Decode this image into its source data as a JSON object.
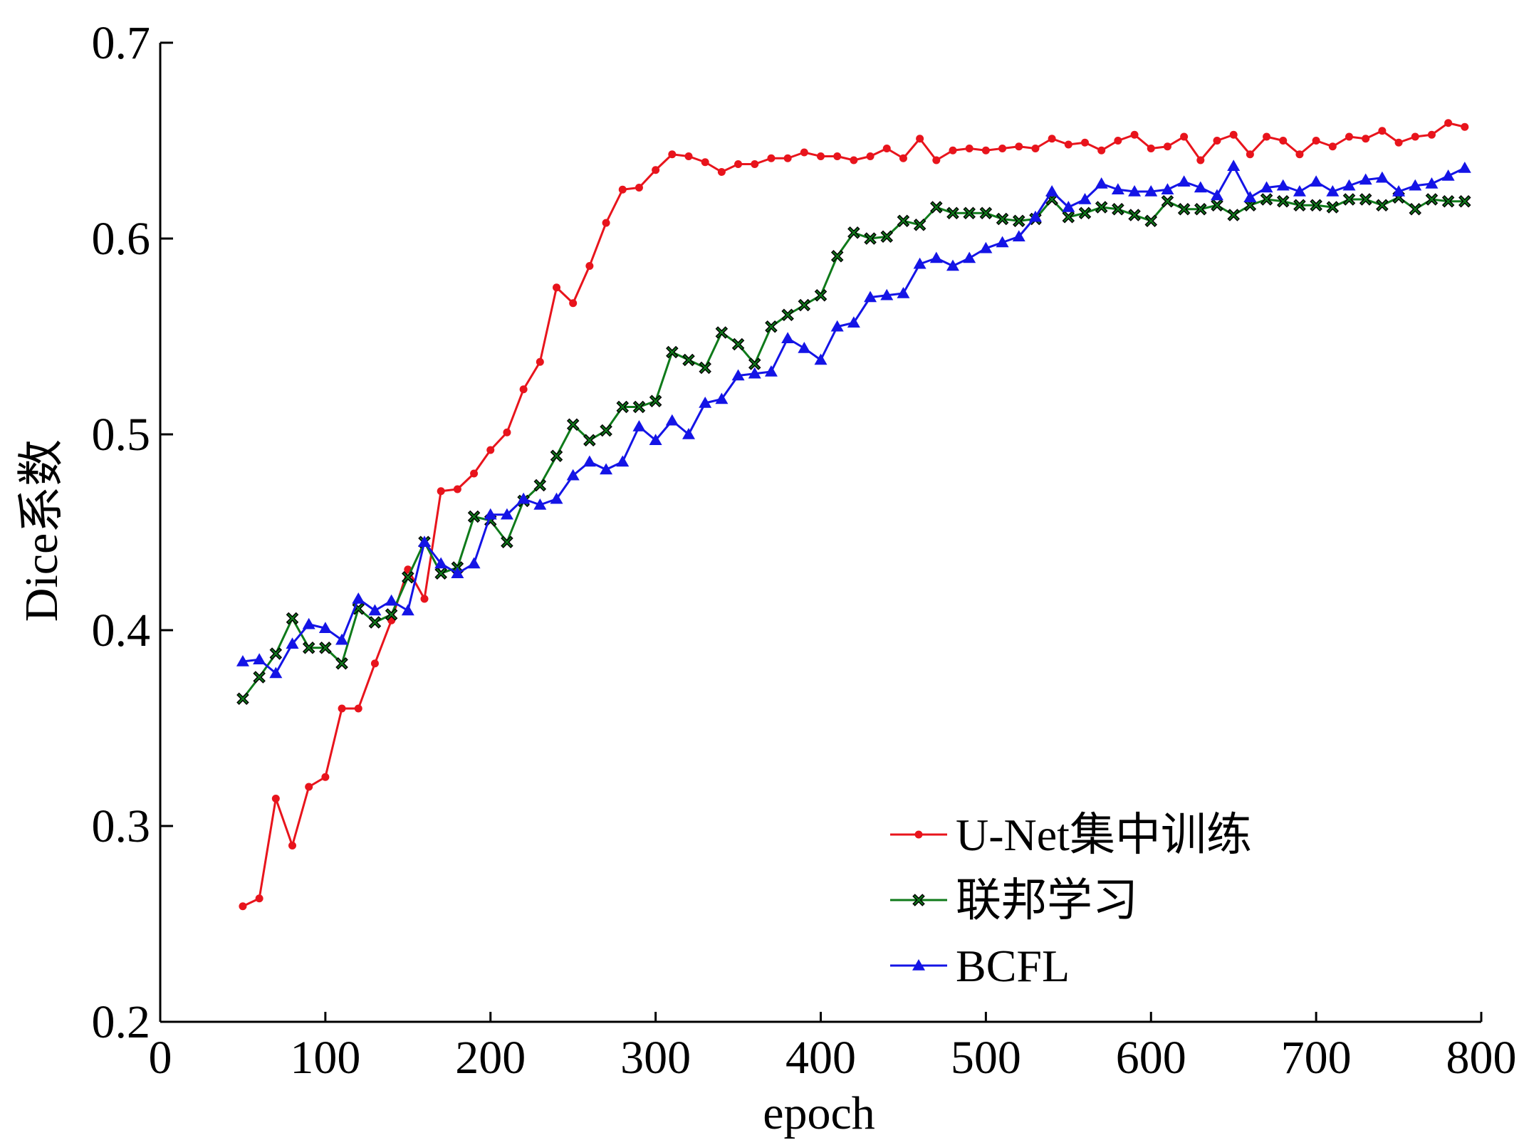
{
  "chart_data": {
    "type": "line",
    "xlabel": "epoch",
    "ylabel": "Dice系数",
    "xlim": [
      0,
      800
    ],
    "ylim": [
      0.2,
      0.7
    ],
    "x_ticks": [
      "0",
      "100",
      "200",
      "300",
      "400",
      "500",
      "600",
      "700",
      "800"
    ],
    "y_ticks": [
      "0.2",
      "0.3",
      "0.4",
      "0.5",
      "0.6",
      "0.7"
    ],
    "grid": false,
    "legend_position": "bottom-right",
    "x": [
      50,
      60,
      70,
      80,
      90,
      100,
      110,
      120,
      130,
      140,
      150,
      160,
      170,
      180,
      190,
      200,
      210,
      220,
      230,
      240,
      250,
      260,
      270,
      280,
      290,
      300,
      310,
      320,
      330,
      340,
      350,
      360,
      370,
      380,
      390,
      400,
      410,
      420,
      430,
      440,
      450,
      460,
      470,
      480,
      490,
      500,
      510,
      520,
      530,
      540,
      550,
      560,
      570,
      580,
      590,
      600,
      610,
      620,
      630,
      640,
      650,
      660,
      670,
      680,
      690,
      700,
      710,
      720,
      730,
      740,
      750,
      760,
      770,
      780,
      790
    ],
    "series": [
      {
        "name": "U-Net集中训练",
        "color": "#e8141c",
        "marker": "dot",
        "values": [
          0.259,
          0.263,
          0.314,
          0.29,
          0.32,
          0.325,
          0.36,
          0.36,
          0.383,
          0.405,
          0.431,
          0.416,
          0.471,
          0.472,
          0.48,
          0.492,
          0.501,
          0.523,
          0.537,
          0.575,
          0.567,
          0.586,
          0.608,
          0.625,
          0.626,
          0.635,
          0.643,
          0.642,
          0.639,
          0.634,
          0.638,
          0.638,
          0.641,
          0.641,
          0.644,
          0.642,
          0.642,
          0.64,
          0.642,
          0.646,
          0.641,
          0.651,
          0.64,
          0.645,
          0.646,
          0.645,
          0.646,
          0.647,
          0.646,
          0.651,
          0.648,
          0.649,
          0.645,
          0.65,
          0.653,
          0.646,
          0.647,
          0.652,
          0.64,
          0.65,
          0.653,
          0.643,
          0.652,
          0.65,
          0.643,
          0.65,
          0.647,
          0.652,
          0.651,
          0.655,
          0.649,
          0.652,
          0.653,
          0.659,
          0.657
        ]
      },
      {
        "name": "联邦学习",
        "color": "#0f7a1a",
        "marker": "x",
        "values": [
          0.365,
          0.376,
          0.388,
          0.406,
          0.391,
          0.391,
          0.383,
          0.411,
          0.404,
          0.408,
          0.427,
          0.445,
          0.429,
          0.432,
          0.458,
          0.456,
          0.445,
          0.466,
          0.474,
          0.489,
          0.505,
          0.497,
          0.502,
          0.514,
          0.514,
          0.517,
          0.542,
          0.538,
          0.534,
          0.552,
          0.546,
          0.536,
          0.555,
          0.561,
          0.566,
          0.571,
          0.591,
          0.603,
          0.6,
          0.601,
          0.609,
          0.607,
          0.616,
          0.613,
          0.613,
          0.613,
          0.61,
          0.609,
          0.61,
          0.62,
          0.611,
          0.613,
          0.616,
          0.615,
          0.612,
          0.609,
          0.619,
          0.615,
          0.615,
          0.617,
          0.612,
          0.617,
          0.62,
          0.619,
          0.617,
          0.617,
          0.616,
          0.62,
          0.62,
          0.617,
          0.621,
          0.615,
          0.62,
          0.619,
          0.619
        ]
      },
      {
        "name": "BCFL",
        "color": "#1414e6",
        "marker": "triangle",
        "values": [
          0.384,
          0.385,
          0.378,
          0.393,
          0.403,
          0.401,
          0.395,
          0.416,
          0.41,
          0.415,
          0.41,
          0.445,
          0.434,
          0.429,
          0.434,
          0.459,
          0.459,
          0.467,
          0.464,
          0.467,
          0.479,
          0.486,
          0.482,
          0.486,
          0.504,
          0.497,
          0.507,
          0.5,
          0.516,
          0.518,
          0.53,
          0.531,
          0.532,
          0.549,
          0.544,
          0.538,
          0.555,
          0.557,
          0.57,
          0.571,
          0.572,
          0.587,
          0.59,
          0.586,
          0.59,
          0.595,
          0.598,
          0.601,
          0.611,
          0.624,
          0.616,
          0.62,
          0.628,
          0.625,
          0.624,
          0.624,
          0.625,
          0.629,
          0.626,
          0.622,
          0.637,
          0.621,
          0.626,
          0.627,
          0.624,
          0.629,
          0.624,
          0.627,
          0.63,
          0.631,
          0.624,
          0.627,
          0.628,
          0.632,
          0.636
        ]
      }
    ]
  }
}
